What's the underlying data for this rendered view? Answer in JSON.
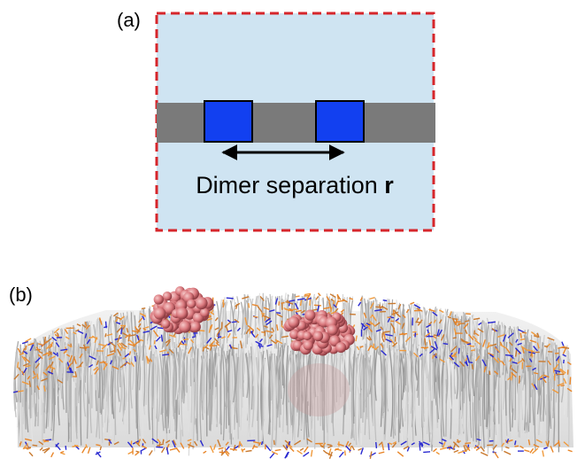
{
  "panel_a": {
    "label": "(a)",
    "caption": "Dimer separation",
    "variable": "r"
  },
  "panel_b": {
    "label": "(b)"
  }
}
